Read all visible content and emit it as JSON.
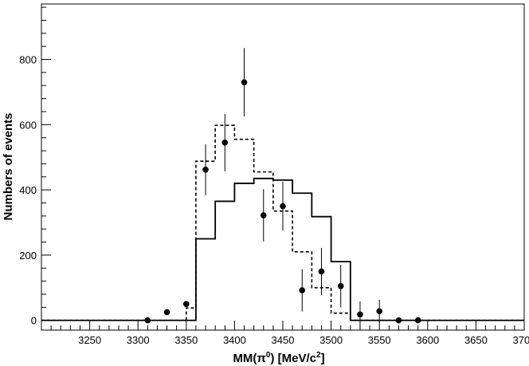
{
  "chart_data": {
    "type": "scatter",
    "xlabel": "MM(π⁰) [MeV/c²]",
    "xlabel_parts": {
      "main": "MM(π",
      "sup1": "0",
      "mid": ") [MeV/c",
      "sup2": "2",
      "end": "]"
    },
    "ylabel": "Numbers of events",
    "xlim": [
      3200,
      3700
    ],
    "ylim": [
      -30,
      970
    ],
    "x_ticks": [
      3250,
      3300,
      3350,
      3400,
      3450,
      3500,
      3550,
      3600,
      3650,
      3700
    ],
    "y_ticks": [
      0,
      200,
      400,
      600,
      800
    ],
    "grid": false,
    "legend": "none",
    "series": [
      {
        "kind": "points_with_errors",
        "x": [
          3310,
          3330,
          3350,
          3370,
          3390,
          3410,
          3430,
          3450,
          3470,
          3490,
          3510,
          3530,
          3550,
          3570,
          3590
        ],
        "y": [
          0,
          25,
          50,
          462,
          545,
          730,
          322,
          350,
          92,
          150,
          105,
          18,
          28,
          0,
          0
        ],
        "err": [
          0,
          0,
          0,
          78,
          88,
          105,
          80,
          75,
          65,
          72,
          65,
          40,
          35,
          0,
          0
        ]
      },
      {
        "kind": "step",
        "style": "solid",
        "edges": [
          3200,
          3340,
          3360,
          3380,
          3400,
          3420,
          3440,
          3460,
          3480,
          3500,
          3520,
          3700
        ],
        "values": [
          0,
          0,
          250,
          365,
          420,
          435,
          430,
          390,
          318,
          180,
          0
        ]
      },
      {
        "kind": "step",
        "style": "dashed",
        "edges": [
          3200,
          3340,
          3350,
          3360,
          3380,
          3400,
          3420,
          3440,
          3460,
          3480,
          3500,
          3520,
          3700
        ],
        "values": [
          0,
          0,
          38,
          488,
          598,
          555,
          455,
          335,
          210,
          100,
          22,
          0
        ]
      }
    ]
  }
}
